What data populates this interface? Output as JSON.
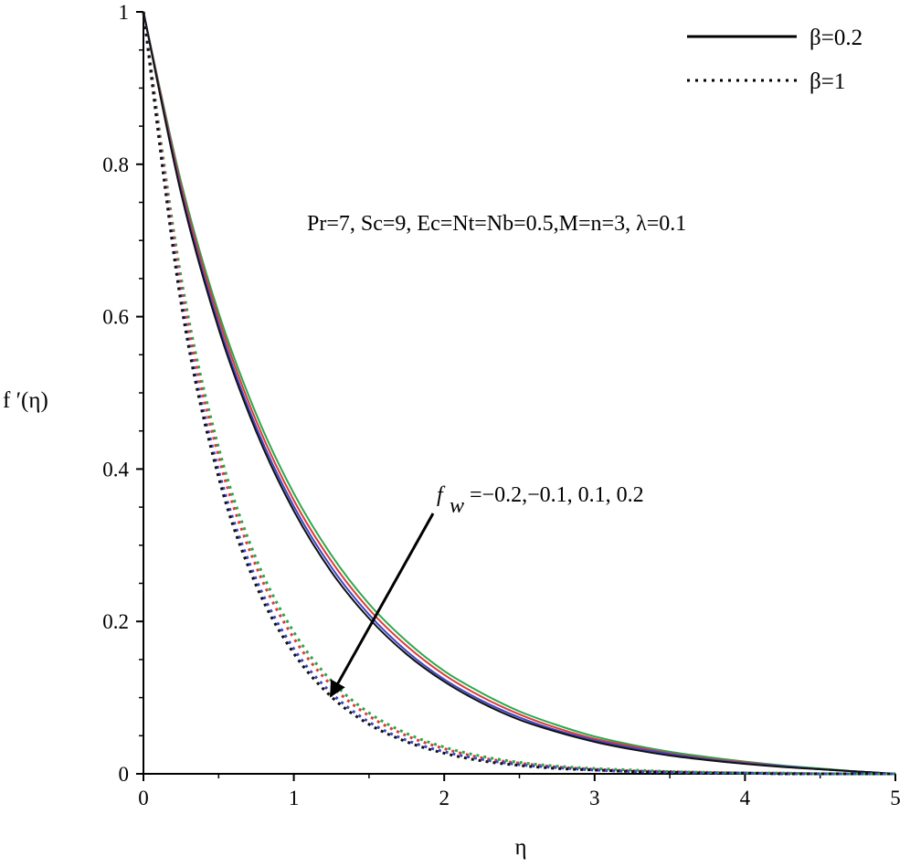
{
  "chart_data": {
    "type": "line",
    "xlabel": "η",
    "ylabel": "f ′(η)",
    "xlim": [
      0,
      5
    ],
    "ylim": [
      0,
      1
    ],
    "x_ticks": [
      "0",
      "1",
      "2",
      "3",
      "4",
      "5"
    ],
    "y_ticks": [
      "0",
      "0.2",
      "0.4",
      "0.6",
      "0.8",
      "1"
    ],
    "grid": false,
    "legend_position": "top-right",
    "legend": [
      {
        "label": "β=0.2",
        "style": "solid"
      },
      {
        "label": "β=1",
        "style": "dotted"
      }
    ],
    "annotations": {
      "params": "Pr=7, Sc=9, Ec=Nt=Nb=0.5,M=n=3, λ=0.1",
      "fw_symbol": "f",
      "fw_subscript": "w",
      "fw_values": "=−0.2,−0.1, 0.1, 0.2"
    },
    "x": [
      0,
      0.25,
      0.5,
      0.75,
      1,
      1.25,
      1.5,
      1.75,
      2,
      2.25,
      2.5,
      2.75,
      3,
      3.25,
      3.5,
      3.75,
      4,
      4.25,
      4.5,
      4.75,
      5
    ],
    "series": [
      {
        "beta": "0.2",
        "fw": "-0.2",
        "style": "solid",
        "color": "#2aa84a",
        "values": [
          1.0,
          0.777,
          0.605,
          0.472,
          0.368,
          0.287,
          0.223,
          0.174,
          0.135,
          0.106,
          0.082,
          0.064,
          0.049,
          0.038,
          0.029,
          0.022,
          0.016,
          0.011,
          0.007,
          0.003,
          0.0
        ]
      },
      {
        "beta": "0.2",
        "fw": "-0.1",
        "style": "solid",
        "color": "#e03a3a",
        "values": [
          1.0,
          0.772,
          0.598,
          0.463,
          0.359,
          0.279,
          0.216,
          0.168,
          0.13,
          0.101,
          0.078,
          0.06,
          0.046,
          0.036,
          0.027,
          0.02,
          0.015,
          0.01,
          0.006,
          0.003,
          0.0
        ]
      },
      {
        "beta": "0.2",
        "fw": "0.1",
        "style": "solid",
        "color": "#3a47c8",
        "values": [
          1.0,
          0.766,
          0.59,
          0.455,
          0.351,
          0.271,
          0.209,
          0.161,
          0.124,
          0.096,
          0.074,
          0.057,
          0.044,
          0.034,
          0.026,
          0.019,
          0.014,
          0.01,
          0.006,
          0.003,
          0.0
        ]
      },
      {
        "beta": "0.2",
        "fw": "0.2",
        "style": "solid",
        "color": "#111111",
        "values": [
          1.0,
          0.762,
          0.584,
          0.449,
          0.345,
          0.265,
          0.204,
          0.157,
          0.121,
          0.093,
          0.071,
          0.055,
          0.042,
          0.032,
          0.024,
          0.018,
          0.013,
          0.009,
          0.006,
          0.003,
          0.0
        ]
      },
      {
        "beta": "1",
        "fw": "-0.2",
        "style": "dotted",
        "color": "#2aa84a",
        "values": [
          1.0,
          0.652,
          0.428,
          0.282,
          0.186,
          0.122,
          0.08,
          0.053,
          0.035,
          0.023,
          0.015,
          0.01,
          0.007,
          0.005,
          0.003,
          0.002,
          0.001,
          0.001,
          0.0,
          0.0,
          0.0
        ]
      },
      {
        "beta": "1",
        "fw": "-0.1",
        "style": "dotted",
        "color": "#e03a3a",
        "values": [
          1.0,
          0.641,
          0.416,
          0.272,
          0.178,
          0.116,
          0.076,
          0.05,
          0.033,
          0.021,
          0.014,
          0.009,
          0.006,
          0.004,
          0.003,
          0.002,
          0.001,
          0.001,
          0.0,
          0.0,
          0.0
        ]
      },
      {
        "beta": "1",
        "fw": "0.1",
        "style": "dotted",
        "color": "#3a47c8",
        "values": [
          1.0,
          0.626,
          0.398,
          0.255,
          0.164,
          0.106,
          0.068,
          0.044,
          0.029,
          0.019,
          0.012,
          0.008,
          0.005,
          0.003,
          0.002,
          0.001,
          0.001,
          0.0,
          0.0,
          0.0,
          0.0
        ]
      },
      {
        "beta": "1",
        "fw": "0.2",
        "style": "dotted",
        "color": "#111111",
        "values": [
          1.0,
          0.618,
          0.389,
          0.247,
          0.158,
          0.101,
          0.065,
          0.042,
          0.027,
          0.017,
          0.011,
          0.007,
          0.005,
          0.003,
          0.002,
          0.001,
          0.001,
          0.0,
          0.0,
          0.0,
          0.0
        ]
      }
    ]
  }
}
